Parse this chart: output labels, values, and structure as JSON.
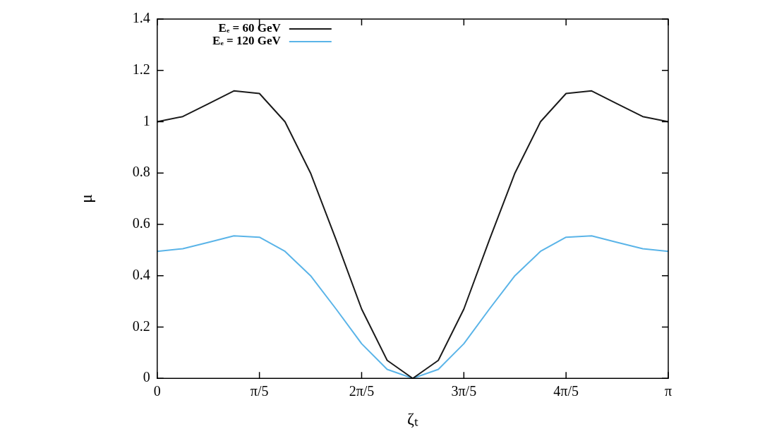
{
  "chart_data": {
    "type": "line",
    "xlabel": "ζₜ",
    "ylabel": "μ",
    "x": [
      0,
      0.1571,
      0.3142,
      0.4712,
      0.6283,
      0.7854,
      0.9425,
      1.0996,
      1.2566,
      1.4137,
      1.5708,
      1.7279,
      1.885,
      2.042,
      2.1991,
      2.3562,
      2.5133,
      2.6704,
      2.8274,
      2.9845,
      3.1416
    ],
    "series": [
      {
        "name": "Eₑ = 60 GeV",
        "color": "#1a1a1a",
        "values": [
          1.0,
          1.02,
          1.07,
          1.12,
          1.11,
          1.0,
          0.8,
          0.54,
          0.27,
          0.07,
          0.0,
          0.07,
          0.27,
          0.54,
          0.8,
          1.0,
          1.11,
          1.12,
          1.07,
          1.02,
          1.0
        ]
      },
      {
        "name": "Eₑ = 120 GeV",
        "color": "#5ab4e8",
        "values": [
          0.495,
          0.505,
          0.53,
          0.555,
          0.55,
          0.495,
          0.4,
          0.27,
          0.135,
          0.035,
          0.0,
          0.035,
          0.135,
          0.27,
          0.4,
          0.495,
          0.55,
          0.555,
          0.53,
          0.505,
          0.495
        ]
      }
    ],
    "xlim": [
      0,
      3.1416
    ],
    "xticks": [
      0,
      {
        "value": 0.6283,
        "label": "π/5"
      },
      {
        "value": 1.2566,
        "label": "2π/5"
      },
      {
        "value": 1.885,
        "label": "3π/5"
      },
      {
        "value": 2.5133,
        "label": "4π/5"
      },
      {
        "value": 3.1416,
        "label": "π"
      }
    ],
    "ylim": [
      0,
      1.4
    ],
    "yticks": [
      0,
      0.2,
      0.4,
      0.6,
      0.8,
      1,
      1.2,
      1.4
    ],
    "grid": false,
    "legend": "top left",
    "marker": "none",
    "line_style": "solid"
  }
}
